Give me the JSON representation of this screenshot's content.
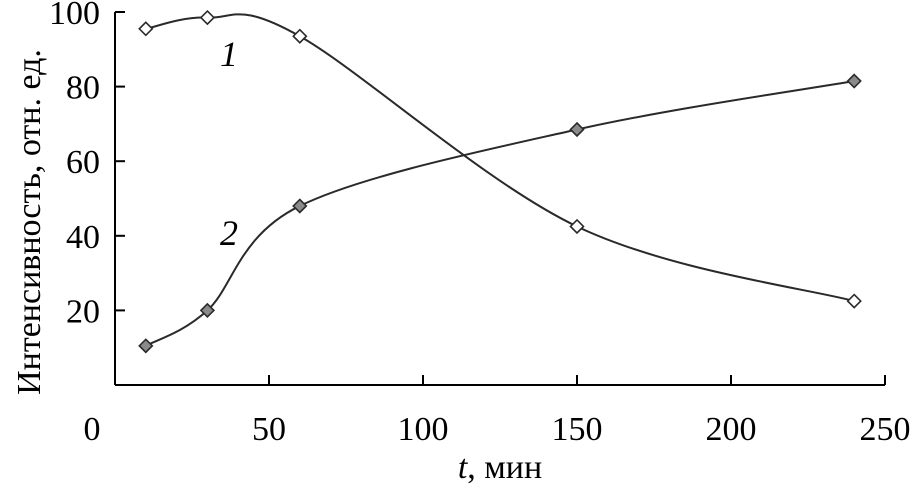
{
  "chart_data": {
    "type": "line",
    "title": "",
    "xlabel_var": "t",
    "xlabel_unit": ", мин",
    "ylabel": "Интенсивность, отн. ед.",
    "xlim": [
      0,
      250
    ],
    "ylim": [
      0,
      100
    ],
    "xticks": [
      0,
      50,
      100,
      150,
      200,
      250
    ],
    "yticks": [
      20,
      40,
      60,
      80,
      100
    ],
    "grid": false,
    "series": [
      {
        "name": "1",
        "marker": "open-diamond",
        "x": [
          10,
          30,
          60,
          150,
          240
        ],
        "y": [
          95.5,
          98.5,
          93.5,
          42.5,
          22.5
        ]
      },
      {
        "name": "2",
        "marker": "filled-diamond",
        "x": [
          10,
          30,
          60,
          150,
          240
        ],
        "y": [
          10.5,
          20,
          48,
          68.5,
          81.5
        ]
      }
    ]
  }
}
